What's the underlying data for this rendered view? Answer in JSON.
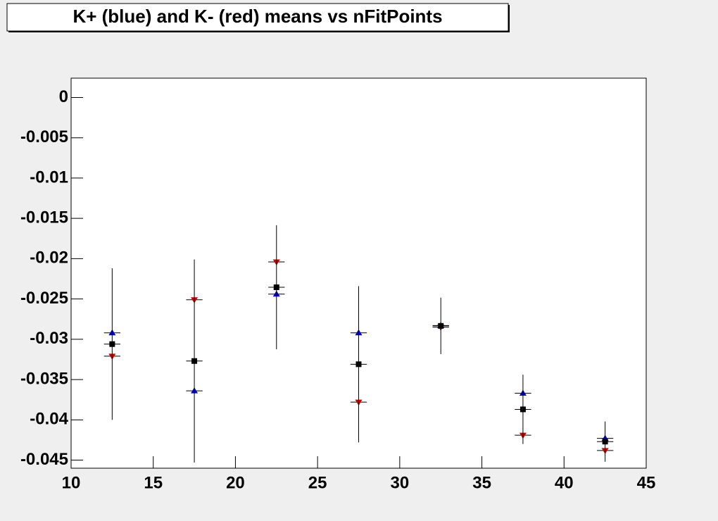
{
  "chart_data": {
    "type": "scatter",
    "title": "K+ (blue) and K- (red) means vs nFitPoints",
    "x": [
      12.5,
      17.5,
      22.5,
      27.5,
      32.5,
      37.5,
      42.5
    ],
    "series": [
      {
        "color": "#0000cc",
        "marker": "triangle-up",
        "values": [
          -0.0292,
          -0.0364,
          -0.0244,
          -0.0292,
          -0.0283,
          -0.0367,
          -0.0423
        ],
        "xerr": 0.5
      },
      {
        "color": "#cc0000",
        "marker": "triangle-down",
        "values": [
          -0.0321,
          -0.0251,
          -0.0204,
          -0.0378,
          -0.0285,
          -0.0419,
          -0.0438
        ],
        "xerr": 0.5
      },
      {
        "color": "#000000",
        "marker": "square",
        "values": [
          -0.0306,
          -0.0327,
          -0.02355,
          -0.0331,
          -0.02834,
          -0.0387,
          -0.0427
        ],
        "errors": [
          0.0094,
          0.0126,
          0.0077,
          0.0097,
          0.0035,
          0.0043,
          0.0025
        ],
        "xerr": 0.5
      }
    ],
    "xlim": [
      10,
      45
    ],
    "xticks": [
      10,
      15,
      20,
      25,
      30,
      35,
      40,
      45
    ],
    "ylim": [
      -0.046,
      0.0024
    ],
    "yticks": [
      0,
      -0.005,
      -0.01,
      -0.015,
      -0.02,
      -0.025,
      -0.03,
      -0.035,
      -0.04,
      -0.045
    ],
    "grid": false
  }
}
